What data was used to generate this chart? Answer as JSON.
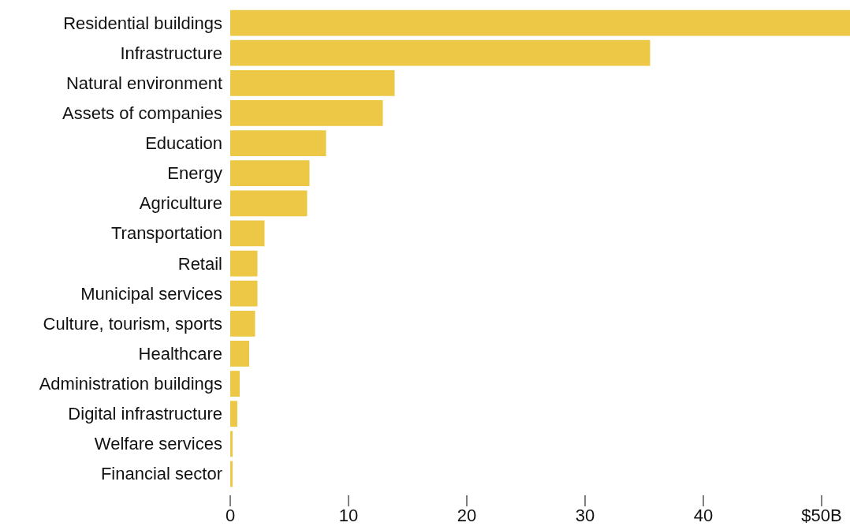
{
  "chart_data": {
    "type": "bar",
    "orientation": "horizontal",
    "categories": [
      "Residential buildings",
      "Infrastructure",
      "Natural environment",
      "Assets of companies",
      "Education",
      "Energy",
      "Agriculture",
      "Transportation",
      "Retail",
      "Municipal services",
      "Culture, tourism, sports",
      "Healthcare",
      "Administration buildings",
      "Digital infrastructure",
      "Welfare services",
      "Financial sector"
    ],
    "values": [
      52.4,
      35.5,
      13.9,
      12.9,
      8.1,
      6.7,
      6.5,
      2.9,
      2.3,
      2.3,
      2.1,
      1.6,
      0.8,
      0.6,
      0.2,
      0.2
    ],
    "color": "#ecc846",
    "xlim": [
      0,
      52.4
    ],
    "xticks": [
      0,
      10,
      20,
      30,
      40,
      {
        "value": 50,
        "label": "$50B"
      }
    ],
    "grid": false
  }
}
